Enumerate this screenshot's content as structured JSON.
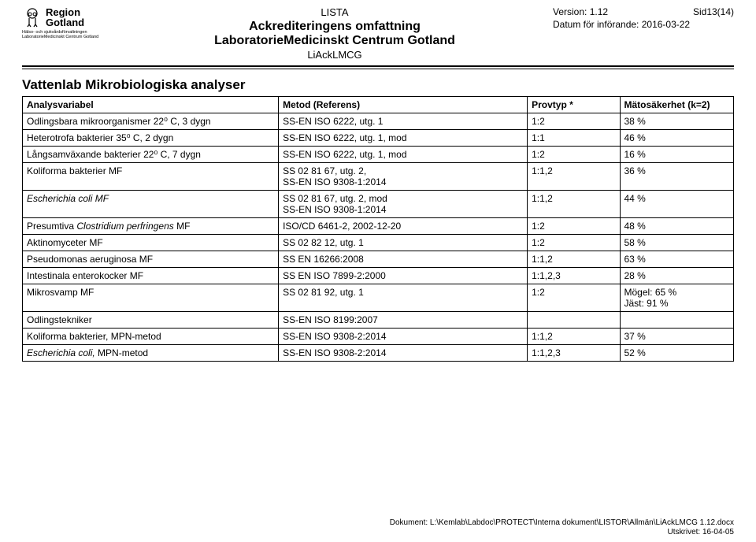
{
  "header": {
    "logo_line1": "Region",
    "logo_line2": "Gotland",
    "logo_sub1": "Hälso- och sjukvårdsförvaltningen",
    "logo_sub2": "LaboratorieMedicinskt Centrum Gotland",
    "center_top": "LISTA",
    "center_title1": "Ackrediteringens omfattning",
    "center_title2": "LaboratorieMedicinskt Centrum Gotland",
    "center_sub": "LiAckLMCG",
    "version_label": "Version: 1.12",
    "page_label": "Sid13(14)",
    "date_label": "Datum för införande: 2016-03-22"
  },
  "section_title": "Vattenlab Mikrobiologiska analyser",
  "table": {
    "headers": {
      "col1": "Analysvariabel",
      "col2": "Metod (Referens)",
      "col3": "Provtyp *",
      "col4": "Mätosäkerhet (k=2)"
    },
    "rows": [
      {
        "c1": "Odlingsbara mikroorganismer 22⁰ C, 3 dygn",
        "c2": "SS-EN ISO 6222, utg. 1",
        "c3": "1:2",
        "c4": "38 %"
      },
      {
        "c1": "Heterotrofa bakterier 35⁰ C, 2 dygn",
        "c2": "SS-EN ISO 6222, utg. 1, mod",
        "c3": "1:1",
        "c4": "46 %"
      },
      {
        "c1": "Långsamväxande bakterier 22⁰ C, 7 dygn",
        "c2": "SS-EN ISO 6222, utg. 1, mod",
        "c3": "1:2",
        "c4": "16 %"
      },
      {
        "c1": "Koliforma bakterier MF",
        "c2": "SS 02 81 67, utg. 2,\nSS-EN ISO 9308-1:2014",
        "c3": "1:1,2",
        "c4": "36 %"
      },
      {
        "c1": "Escherichia coli MF",
        "c1_italic": true,
        "c2": "SS 02 81 67, utg. 2, mod\nSS-EN ISO 9308-1:2014",
        "c3": "1:1,2",
        "c4": "44 %"
      },
      {
        "c1": "Presumtiva Clostridium perfringens MF",
        "c1_partial_italic": "Clostridium perfringens",
        "c2": "ISO/CD 6461-2, 2002-12-20",
        "c3": "1:2",
        "c4": "48 %"
      },
      {
        "c1": "Aktinomyceter MF",
        "c2": "SS 02 82 12, utg. 1",
        "c3": "1:2",
        "c4": "58 %"
      },
      {
        "c1": "Pseudomonas aeruginosa MF",
        "c2": "SS EN 16266:2008",
        "c3": "1:1,2",
        "c4": "63 %"
      },
      {
        "c1": "Intestinala enterokocker MF",
        "c2": "SS EN ISO 7899-2:2000",
        "c3": "1:1,2,3",
        "c4": "28 %"
      },
      {
        "c1": "Mikrosvamp MF",
        "c2": "SS 02 81 92, utg. 1",
        "c3": "1:2",
        "c4": "Mögel: 65 %\nJäst: 91 %"
      },
      {
        "c1": "Odlingstekniker",
        "c2": "SS-EN ISO 8199:2007",
        "c3": "",
        "c4": ""
      },
      {
        "c1": "Koliforma bakterier, MPN-metod",
        "c2": "SS-EN ISO 9308-2:2014",
        "c3": "1:1,2",
        "c4": "37 %"
      },
      {
        "c1": "Escherichia coli, MPN-metod",
        "c1_partial_italic": "Escherichia coli,",
        "c2": "SS-EN ISO 9308-2:2014",
        "c3": "1:1,2,3",
        "c4": "52 %"
      }
    ]
  },
  "footer": {
    "line1": "Dokument: L:\\Kemlab\\Labdoc\\PROTECT\\Interna dokument\\LISTOR\\Allmän\\LiAckLMCG 1.12.docx",
    "line2": "Utskrivet: 16-04-05"
  }
}
